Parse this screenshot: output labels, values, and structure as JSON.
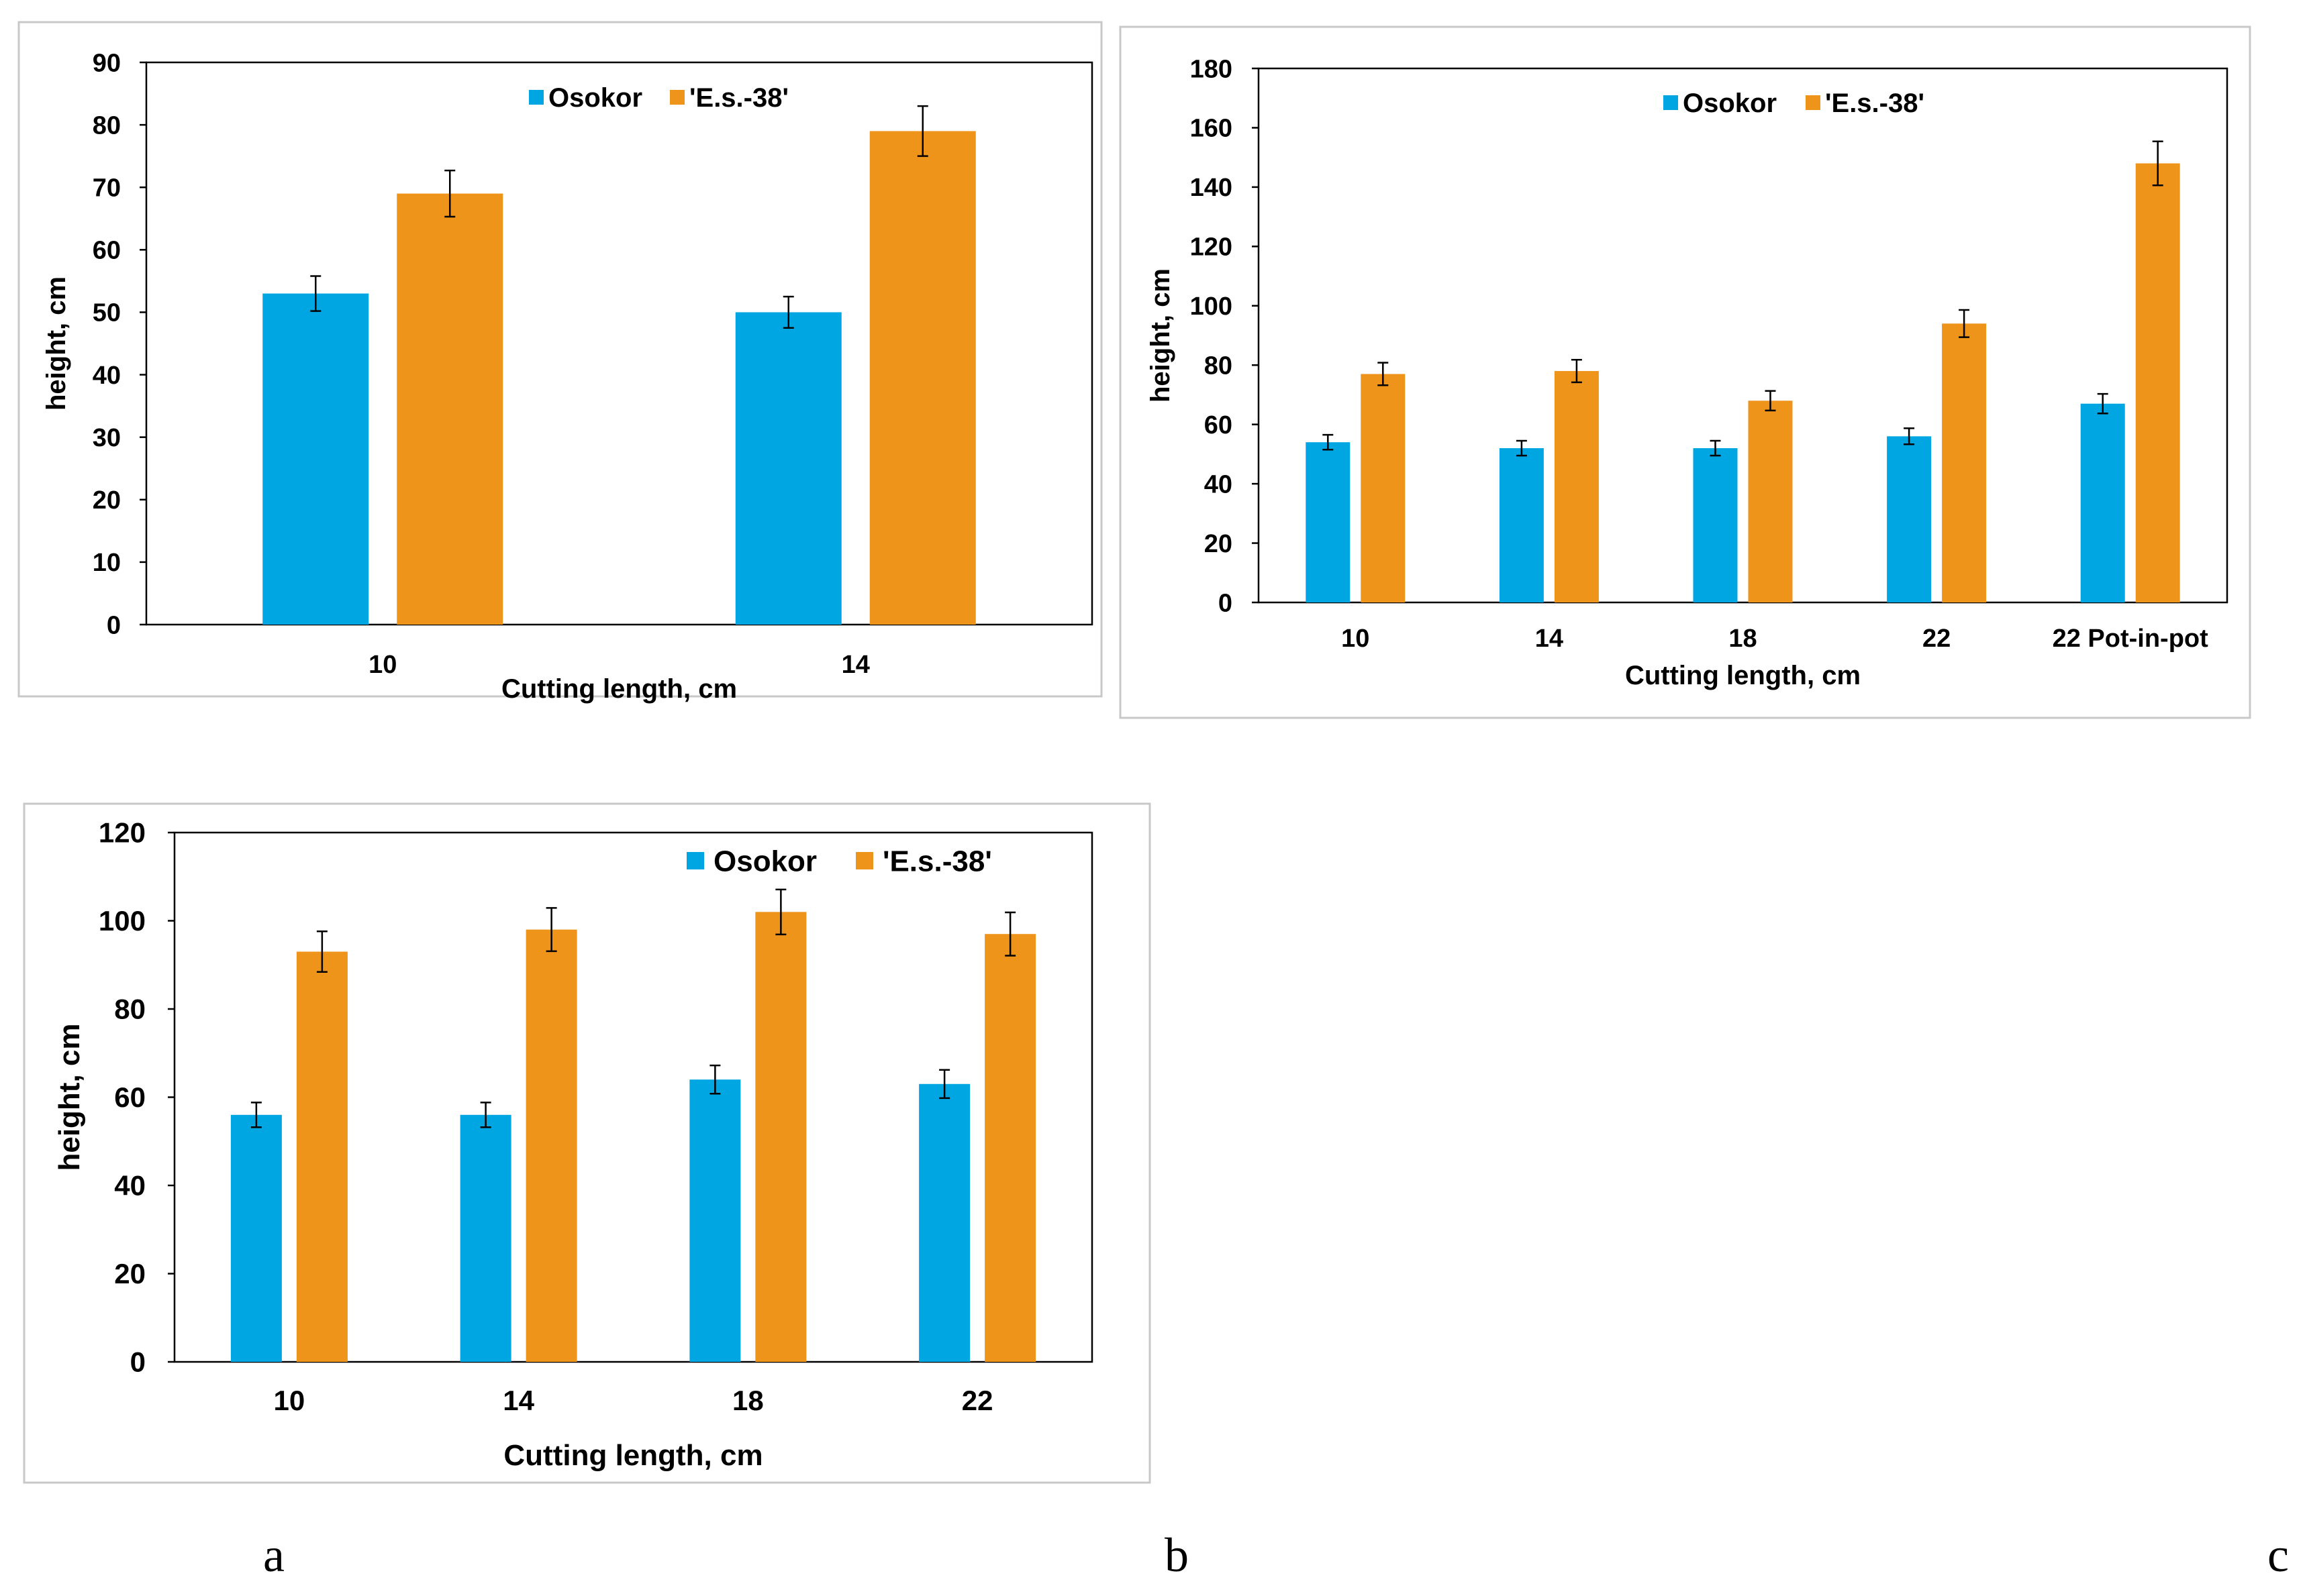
{
  "colors": {
    "osokor": "#00A6E2",
    "es38": "#EE941A",
    "frame": "#C8C8C8"
  },
  "panel_letters": [
    "a",
    "b",
    "c"
  ],
  "chart_data": [
    {
      "type": "bar",
      "categories": [
        "10",
        "14"
      ],
      "series": [
        {
          "name": "Osokor",
          "values": [
            53,
            50
          ],
          "errors": [
            2.8,
            2.5
          ]
        },
        {
          "name": "'E.s.-38'",
          "values": [
            69,
            79
          ],
          "errors": [
            3.7,
            4
          ]
        }
      ],
      "xlabel": "Cutting length, cm",
      "ylabel": "height, cm",
      "ylim": [
        0,
        90
      ],
      "yticks": [
        0,
        10,
        20,
        30,
        40,
        50,
        60,
        70,
        80,
        90
      ],
      "legend": "top-center",
      "grid": false
    },
    {
      "type": "bar",
      "categories": [
        "10",
        "14",
        "18",
        "22",
        "22 Pot-in-pot"
      ],
      "series": [
        {
          "name": "Osokor",
          "values": [
            54,
            52,
            52,
            56,
            67
          ],
          "errors": [
            2.5,
            2.5,
            2.5,
            2.7,
            3.3
          ]
        },
        {
          "name": "'E.s.-38'",
          "values": [
            77,
            78,
            68,
            94,
            148
          ],
          "errors": [
            3.8,
            3.8,
            3.3,
            4.6,
            7.4
          ]
        }
      ],
      "xlabel": "Cutting length, cm",
      "ylabel": "height, cm",
      "ylim": [
        0,
        180
      ],
      "yticks": [
        0,
        20,
        40,
        60,
        80,
        100,
        120,
        140,
        160,
        180
      ],
      "legend": "top-center",
      "grid": false
    },
    {
      "type": "bar",
      "categories": [
        "10",
        "14",
        "18",
        "22"
      ],
      "series": [
        {
          "name": "Osokor",
          "values": [
            56,
            56,
            64,
            63
          ],
          "errors": [
            2.8,
            2.8,
            3.2,
            3.2
          ]
        },
        {
          "name": "'E.s.-38'",
          "values": [
            93,
            98,
            102,
            97
          ],
          "errors": [
            4.6,
            4.9,
            5.1,
            4.9
          ]
        }
      ],
      "xlabel": "Cutting length, cm",
      "ylabel": "height, cm",
      "ylim": [
        0,
        120
      ],
      "yticks": [
        0,
        20,
        40,
        60,
        80,
        100,
        120
      ],
      "legend": "top-right",
      "grid": false
    }
  ]
}
